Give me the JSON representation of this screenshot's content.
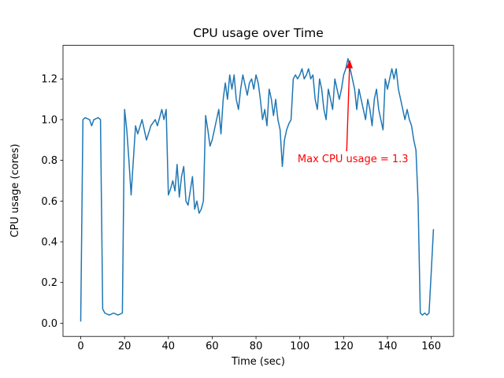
{
  "chart_data": {
    "type": "line",
    "title": "CPU usage over Time",
    "xlabel": "Time (sec)",
    "ylabel": "CPU usage (cores)",
    "xlim": [
      -8.1,
      170.2
    ],
    "ylim": [
      -0.065,
      1.365
    ],
    "xticks": [
      0,
      20,
      40,
      60,
      80,
      100,
      120,
      140,
      160
    ],
    "xtick_labels": [
      "0",
      "20",
      "40",
      "60",
      "80",
      "100",
      "120",
      "140",
      "160"
    ],
    "yticks": [
      0.0,
      0.2,
      0.4,
      0.6,
      0.8,
      1.0,
      1.2
    ],
    "ytick_labels": [
      "0.0",
      "0.2",
      "0.4",
      "0.6",
      "0.8",
      "1.0",
      "1.2"
    ],
    "grid": false,
    "legend": "none",
    "line_color": "#1f77b4",
    "annotation": {
      "text": "Max CPU usage = 1.3",
      "color": "#ff0000",
      "text_xy": [
        99,
        0.79
      ],
      "arrow_tail_xy": [
        121.4,
        0.845
      ],
      "arrow_tip_xy": [
        122.8,
        1.295
      ],
      "max_value": 1.3
    },
    "series": [
      {
        "name": "cpu_usage",
        "points": [
          [
            0,
            0.01
          ],
          [
            1,
            1.0
          ],
          [
            2,
            1.01
          ],
          [
            4,
            1.0
          ],
          [
            5,
            0.97
          ],
          [
            6,
            1.0
          ],
          [
            8,
            1.01
          ],
          [
            9,
            1.0
          ],
          [
            10,
            0.07
          ],
          [
            11,
            0.05
          ],
          [
            13,
            0.04
          ],
          [
            15,
            0.05
          ],
          [
            17,
            0.04
          ],
          [
            19,
            0.05
          ],
          [
            20,
            1.05
          ],
          [
            21,
            0.95
          ],
          [
            22,
            0.8
          ],
          [
            23,
            0.63
          ],
          [
            25,
            0.97
          ],
          [
            26,
            0.93
          ],
          [
            28,
            1.0
          ],
          [
            30,
            0.9
          ],
          [
            32,
            0.97
          ],
          [
            34,
            1.0
          ],
          [
            35,
            0.97
          ],
          [
            37,
            1.05
          ],
          [
            38,
            1.0
          ],
          [
            39,
            1.05
          ],
          [
            40,
            0.63
          ],
          [
            41,
            0.66
          ],
          [
            42,
            0.7
          ],
          [
            43,
            0.65
          ],
          [
            44,
            0.78
          ],
          [
            45,
            0.62
          ],
          [
            46,
            0.72
          ],
          [
            47,
            0.77
          ],
          [
            48,
            0.6
          ],
          [
            49,
            0.58
          ],
          [
            50,
            0.65
          ],
          [
            51,
            0.72
          ],
          [
            52,
            0.56
          ],
          [
            53,
            0.6
          ],
          [
            54,
            0.54
          ],
          [
            55,
            0.56
          ],
          [
            56,
            0.6
          ],
          [
            57,
            1.02
          ],
          [
            58,
            0.95
          ],
          [
            59,
            0.87
          ],
          [
            60,
            0.9
          ],
          [
            61,
            0.95
          ],
          [
            62,
            1.0
          ],
          [
            63,
            1.05
          ],
          [
            64,
            0.93
          ],
          [
            65,
            1.1
          ],
          [
            66,
            1.18
          ],
          [
            67,
            1.1
          ],
          [
            68,
            1.22
          ],
          [
            69,
            1.15
          ],
          [
            70,
            1.22
          ],
          [
            71,
            1.1
          ],
          [
            72,
            1.05
          ],
          [
            73,
            1.15
          ],
          [
            74,
            1.22
          ],
          [
            75,
            1.17
          ],
          [
            76,
            1.12
          ],
          [
            77,
            1.18
          ],
          [
            78,
            1.2
          ],
          [
            79,
            1.15
          ],
          [
            80,
            1.22
          ],
          [
            81,
            1.18
          ],
          [
            82,
            1.1
          ],
          [
            83,
            1.0
          ],
          [
            84,
            1.05
          ],
          [
            85,
            0.97
          ],
          [
            86,
            1.15
          ],
          [
            87,
            1.1
          ],
          [
            88,
            1.02
          ],
          [
            89,
            1.1
          ],
          [
            90,
            1.0
          ],
          [
            91,
            0.95
          ],
          [
            92,
            0.77
          ],
          [
            93,
            0.9
          ],
          [
            94,
            0.95
          ],
          [
            95,
            0.98
          ],
          [
            96,
            1.0
          ],
          [
            97,
            1.2
          ],
          [
            98,
            1.22
          ],
          [
            99,
            1.2
          ],
          [
            100,
            1.22
          ],
          [
            101,
            1.25
          ],
          [
            102,
            1.2
          ],
          [
            103,
            1.22
          ],
          [
            104,
            1.25
          ],
          [
            105,
            1.2
          ],
          [
            106,
            1.22
          ],
          [
            107,
            1.1
          ],
          [
            108,
            1.05
          ],
          [
            109,
            1.2
          ],
          [
            110,
            1.15
          ],
          [
            111,
            1.05
          ],
          [
            112,
            1.0
          ],
          [
            113,
            1.15
          ],
          [
            114,
            1.1
          ],
          [
            115,
            1.05
          ],
          [
            116,
            1.2
          ],
          [
            117,
            1.15
          ],
          [
            118,
            1.1
          ],
          [
            119,
            1.15
          ],
          [
            120,
            1.22
          ],
          [
            121,
            1.25
          ],
          [
            122,
            1.3
          ],
          [
            123,
            1.25
          ],
          [
            124,
            1.2
          ],
          [
            125,
            1.15
          ],
          [
            126,
            1.05
          ],
          [
            127,
            1.15
          ],
          [
            128,
            1.1
          ],
          [
            129,
            1.05
          ],
          [
            130,
            1.0
          ],
          [
            131,
            1.1
          ],
          [
            132,
            1.05
          ],
          [
            133,
            0.97
          ],
          [
            134,
            1.1
          ],
          [
            135,
            1.15
          ],
          [
            136,
            1.05
          ],
          [
            137,
            1.0
          ],
          [
            138,
            0.95
          ],
          [
            139,
            1.2
          ],
          [
            140,
            1.15
          ],
          [
            141,
            1.2
          ],
          [
            142,
            1.25
          ],
          [
            143,
            1.2
          ],
          [
            144,
            1.25
          ],
          [
            145,
            1.15
          ],
          [
            146,
            1.1
          ],
          [
            147,
            1.05
          ],
          [
            148,
            1.0
          ],
          [
            149,
            1.05
          ],
          [
            150,
            1.0
          ],
          [
            151,
            0.97
          ],
          [
            152,
            0.9
          ],
          [
            153,
            0.85
          ],
          [
            154,
            0.6
          ],
          [
            155,
            0.05
          ],
          [
            156,
            0.04
          ],
          [
            157,
            0.05
          ],
          [
            158,
            0.04
          ],
          [
            159,
            0.05
          ],
          [
            160,
            0.25
          ],
          [
            161,
            0.46
          ]
        ]
      }
    ]
  }
}
